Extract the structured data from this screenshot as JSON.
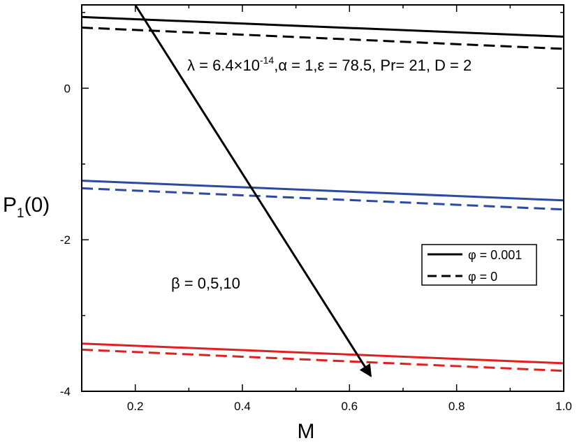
{
  "chart_data": {
    "type": "line",
    "xlabel": "M",
    "ylabel": {
      "main": "P",
      "sub": "1",
      "rest": "(0)"
    },
    "xlim": [
      0.1,
      1.0
    ],
    "ylim": [
      -4.0,
      1.1
    ],
    "xticks": [
      {
        "v": 0.2,
        "label": "0.2"
      },
      {
        "v": 0.4,
        "label": "0.4"
      },
      {
        "v": 0.6,
        "label": "0.6"
      },
      {
        "v": 0.8,
        "label": "0.8"
      },
      {
        "v": 1.0,
        "label": "1.0"
      }
    ],
    "yticks": [
      {
        "v": 0,
        "label": "0"
      },
      {
        "v": -2,
        "label": "-2"
      },
      {
        "v": -4,
        "label": "-4"
      }
    ],
    "grid": false,
    "legend_position": "right",
    "legend": [
      {
        "label": "φ = 0.001",
        "style": "solid"
      },
      {
        "label": "φ = 0",
        "style": "dashed"
      }
    ],
    "annotations": {
      "params": {
        "pre": "λ = 6.4×10",
        "sup": "-14",
        "post": ",α = 1,ε = 78.5, Pr= 21, D = 2"
      },
      "beta": "β = 0,5,10"
    },
    "arrow": {
      "from": [
        0.2,
        1.1
      ],
      "to": [
        0.64,
        -3.8
      ]
    },
    "series": [
      {
        "color": "#000000",
        "style": "solid",
        "x": [
          0.1,
          1.0
        ],
        "y": [
          0.94,
          0.68
        ]
      },
      {
        "color": "#000000",
        "style": "dashed",
        "x": [
          0.1,
          1.0
        ],
        "y": [
          0.8,
          0.52
        ]
      },
      {
        "color": "#2b4aa0",
        "style": "solid",
        "x": [
          0.1,
          1.0
        ],
        "y": [
          -1.22,
          -1.48
        ]
      },
      {
        "color": "#2b4aa0",
        "style": "dashed",
        "x": [
          0.1,
          1.0
        ],
        "y": [
          -1.32,
          -1.6
        ]
      },
      {
        "color": "#e02020",
        "style": "solid",
        "x": [
          0.1,
          1.0
        ],
        "y": [
          -3.37,
          -3.63
        ]
      },
      {
        "color": "#e02020",
        "style": "dashed",
        "x": [
          0.1,
          1.0
        ],
        "y": [
          -3.45,
          -3.73
        ]
      }
    ]
  }
}
